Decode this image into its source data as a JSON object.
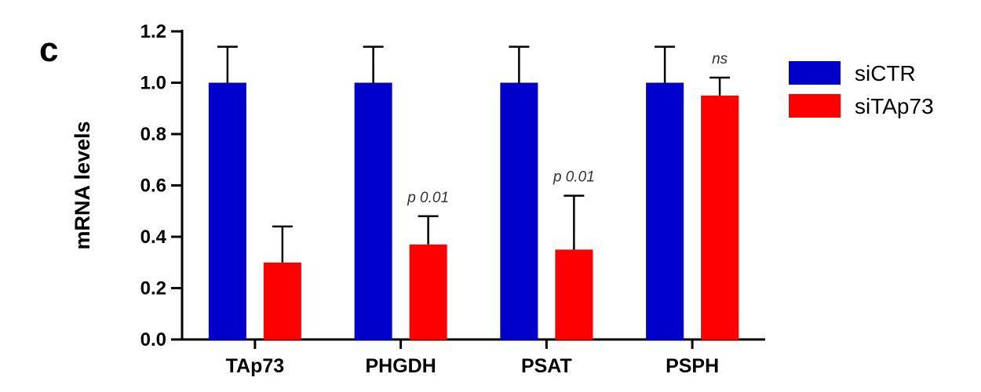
{
  "panel_label": "c",
  "chart_data": {
    "type": "bar",
    "title": "",
    "xlabel": "",
    "ylabel": "mRNA levels",
    "ylim": [
      0,
      1.2
    ],
    "yticks": [
      "0.0",
      "0.2",
      "0.4",
      "0.6",
      "0.8",
      "1.0",
      "1.2"
    ],
    "categories": [
      "TAp73",
      "PHGDH",
      "PSAT",
      "PSPH"
    ],
    "series": [
      {
        "name": "siCTR",
        "color": "#0000cc",
        "values": [
          1.0,
          1.0,
          1.0,
          1.0
        ],
        "errors": [
          0.14,
          0.14,
          0.14,
          0.14
        ]
      },
      {
        "name": "siTAp73",
        "color": "#ff0000",
        "values": [
          0.3,
          0.37,
          0.35,
          0.95
        ],
        "errors": [
          0.14,
          0.11,
          0.21,
          0.07
        ]
      }
    ],
    "annotations": [
      "",
      "p 0.01",
      "p 0.01",
      "ns"
    ],
    "legend_position": "top-right",
    "grid": false
  }
}
